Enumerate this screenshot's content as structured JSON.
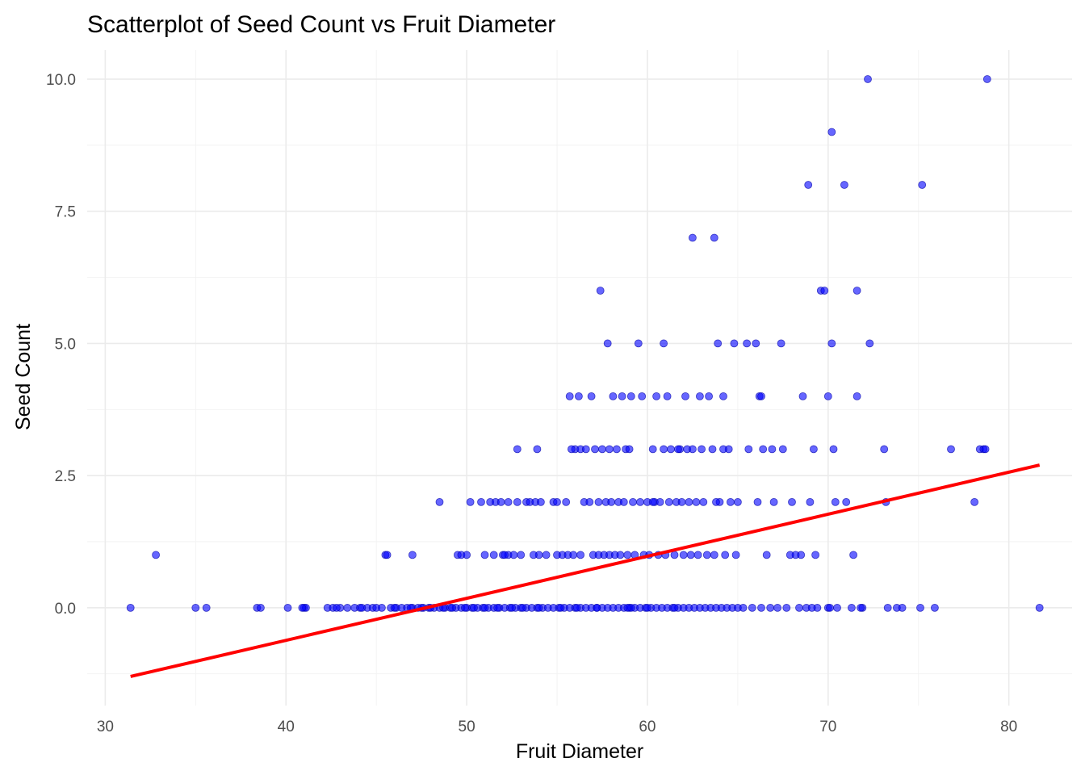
{
  "chart_data": {
    "type": "scatter",
    "title": "Scatterplot of Seed Count vs Fruit Diameter",
    "xlabel": "Fruit Diameter",
    "ylabel": "Seed Count",
    "xlim": [
      29,
      83.5
    ],
    "ylim": [
      -1.85,
      10.55
    ],
    "x_ticks": [
      30,
      40,
      50,
      60,
      70,
      80
    ],
    "x_tick_labels": [
      "30",
      "40",
      "50",
      "60",
      "70",
      "80"
    ],
    "y_ticks": [
      0,
      2.5,
      5,
      7.5,
      10
    ],
    "y_tick_labels": [
      "0.0",
      "2.5",
      "5.0",
      "7.5",
      "10.0"
    ],
    "grid": true,
    "legend": "none",
    "point_color": "#0000ff",
    "line_color": "#ff0000",
    "trend_line": {
      "x": [
        31.4,
        81.7
      ],
      "y": [
        -1.3,
        2.7
      ]
    },
    "points": [
      [
        31.4,
        0
      ],
      [
        32.8,
        1
      ],
      [
        35.0,
        0
      ],
      [
        35.6,
        0
      ],
      [
        38.4,
        0
      ],
      [
        38.6,
        0
      ],
      [
        40.1,
        0
      ],
      [
        41.0,
        0
      ],
      [
        41.1,
        0
      ],
      [
        42.3,
        0
      ],
      [
        42.6,
        0
      ],
      [
        43.0,
        0
      ],
      [
        43.4,
        0
      ],
      [
        43.8,
        0
      ],
      [
        44.1,
        0
      ],
      [
        44.5,
        0
      ],
      [
        44.8,
        0
      ],
      [
        45.0,
        0
      ],
      [
        45.3,
        0
      ],
      [
        45.5,
        1
      ],
      [
        45.6,
        1
      ],
      [
        45.8,
        0
      ],
      [
        46.1,
        0
      ],
      [
        46.4,
        0
      ],
      [
        46.7,
        0
      ],
      [
        47.0,
        1
      ],
      [
        47.0,
        0
      ],
      [
        47.3,
        0
      ],
      [
        47.6,
        0
      ],
      [
        47.9,
        0
      ],
      [
        48.2,
        0
      ],
      [
        48.5,
        2
      ],
      [
        48.5,
        0
      ],
      [
        48.8,
        0
      ],
      [
        49.1,
        0
      ],
      [
        49.4,
        0
      ],
      [
        49.7,
        0
      ],
      [
        49.5,
        1
      ],
      [
        49.7,
        1
      ],
      [
        50.0,
        1
      ],
      [
        50.0,
        0
      ],
      [
        50.2,
        2
      ],
      [
        50.3,
        0
      ],
      [
        50.6,
        0
      ],
      [
        50.9,
        0
      ],
      [
        51.2,
        0
      ],
      [
        51.0,
        1
      ],
      [
        51.5,
        1
      ],
      [
        51.5,
        0
      ],
      [
        51.8,
        0
      ],
      [
        51.3,
        2
      ],
      [
        51.6,
        2
      ],
      [
        51.9,
        2
      ],
      [
        52.0,
        1
      ],
      [
        52.1,
        0
      ],
      [
        52.3,
        2
      ],
      [
        52.4,
        0
      ],
      [
        52.3,
        1
      ],
      [
        52.6,
        1
      ],
      [
        52.7,
        0
      ],
      [
        52.8,
        3
      ],
      [
        52.8,
        2
      ],
      [
        53.0,
        0
      ],
      [
        53.0,
        1
      ],
      [
        53.3,
        0
      ],
      [
        53.3,
        2
      ],
      [
        53.6,
        0
      ],
      [
        53.5,
        2
      ],
      [
        53.8,
        2
      ],
      [
        53.9,
        0
      ],
      [
        53.9,
        3
      ],
      [
        54.1,
        2
      ],
      [
        54.2,
        0
      ],
      [
        54.0,
        1
      ],
      [
        54.4,
        1
      ],
      [
        54.5,
        0
      ],
      [
        54.8,
        0
      ],
      [
        54.8,
        2
      ],
      [
        55.0,
        1
      ],
      [
        55.1,
        0
      ],
      [
        55.0,
        2
      ],
      [
        55.3,
        1
      ],
      [
        55.4,
        0
      ],
      [
        55.5,
        2
      ],
      [
        55.6,
        1
      ],
      [
        55.7,
        0
      ],
      [
        55.7,
        4
      ],
      [
        55.9,
        1
      ],
      [
        56.0,
        0
      ],
      [
        56.0,
        3
      ],
      [
        56.3,
        0
      ],
      [
        56.3,
        3
      ],
      [
        56.3,
        1
      ],
      [
        56.5,
        2
      ],
      [
        56.6,
        0
      ],
      [
        56.6,
        3
      ],
      [
        56.8,
        2
      ],
      [
        56.9,
        0
      ],
      [
        56.9,
        4
      ],
      [
        57.0,
        1
      ],
      [
        57.1,
        3
      ],
      [
        57.2,
        0
      ],
      [
        57.3,
        2
      ],
      [
        57.3,
        1
      ],
      [
        57.4,
        6
      ],
      [
        57.5,
        0
      ],
      [
        57.5,
        3
      ],
      [
        57.6,
        1
      ],
      [
        57.7,
        2
      ],
      [
        57.8,
        0
      ],
      [
        57.8,
        5
      ],
      [
        57.9,
        1
      ],
      [
        57.9,
        3
      ],
      [
        58.0,
        2
      ],
      [
        58.1,
        0
      ],
      [
        58.1,
        4
      ],
      [
        58.2,
        1
      ],
      [
        58.4,
        0
      ],
      [
        58.4,
        2
      ],
      [
        58.5,
        1
      ],
      [
        58.6,
        4
      ],
      [
        58.7,
        0
      ],
      [
        58.7,
        2
      ],
      [
        58.8,
        3
      ],
      [
        58.9,
        1
      ],
      [
        59.0,
        0
      ],
      [
        59.0,
        3
      ],
      [
        59.1,
        4
      ],
      [
        59.2,
        2
      ],
      [
        59.3,
        0
      ],
      [
        59.3,
        1
      ],
      [
        59.5,
        5
      ],
      [
        59.6,
        0
      ],
      [
        59.6,
        2
      ],
      [
        59.7,
        4
      ],
      [
        59.8,
        1
      ],
      [
        59.9,
        0
      ],
      [
        60.0,
        2
      ],
      [
        60.1,
        1
      ],
      [
        60.2,
        0
      ],
      [
        60.3,
        3
      ],
      [
        60.4,
        2
      ],
      [
        60.5,
        0
      ],
      [
        60.5,
        4
      ],
      [
        60.6,
        1
      ],
      [
        60.7,
        2
      ],
      [
        60.8,
        0
      ],
      [
        60.9,
        5
      ],
      [
        60.9,
        3
      ],
      [
        61.0,
        1
      ],
      [
        61.1,
        0
      ],
      [
        61.1,
        4
      ],
      [
        61.2,
        2
      ],
      [
        61.3,
        3
      ],
      [
        61.4,
        0
      ],
      [
        61.5,
        1
      ],
      [
        61.6,
        2
      ],
      [
        61.7,
        0
      ],
      [
        61.8,
        3
      ],
      [
        61.9,
        2
      ],
      [
        62.0,
        0
      ],
      [
        62.0,
        1
      ],
      [
        62.1,
        4
      ],
      [
        62.2,
        3
      ],
      [
        62.3,
        0
      ],
      [
        62.3,
        2
      ],
      [
        62.4,
        1
      ],
      [
        62.5,
        7
      ],
      [
        62.5,
        3
      ],
      [
        62.6,
        0
      ],
      [
        62.7,
        2
      ],
      [
        62.8,
        1
      ],
      [
        62.9,
        0
      ],
      [
        63.0,
        3
      ],
      [
        63.1,
        2
      ],
      [
        63.2,
        0
      ],
      [
        63.3,
        1
      ],
      [
        63.4,
        4
      ],
      [
        63.5,
        0
      ],
      [
        63.6,
        3
      ],
      [
        63.7,
        7
      ],
      [
        63.7,
        1
      ],
      [
        63.8,
        0
      ],
      [
        63.9,
        5
      ],
      [
        64.0,
        2
      ],
      [
        64.1,
        0
      ],
      [
        64.2,
        4
      ],
      [
        64.3,
        1
      ],
      [
        64.4,
        0
      ],
      [
        64.5,
        3
      ],
      [
        64.6,
        2
      ],
      [
        64.7,
        0
      ],
      [
        64.8,
        5
      ],
      [
        64.9,
        1
      ],
      [
        65.0,
        0
      ],
      [
        65.0,
        2
      ],
      [
        65.3,
        0
      ],
      [
        65.5,
        5
      ],
      [
        65.6,
        3
      ],
      [
        65.8,
        0
      ],
      [
        66.0,
        5
      ],
      [
        66.1,
        2
      ],
      [
        66.2,
        4
      ],
      [
        66.3,
        0
      ],
      [
        66.4,
        3
      ],
      [
        66.6,
        1
      ],
      [
        66.8,
        0
      ],
      [
        67.0,
        2
      ],
      [
        67.2,
        0
      ],
      [
        67.4,
        5
      ],
      [
        67.5,
        3
      ],
      [
        67.7,
        0
      ],
      [
        68.0,
        2
      ],
      [
        68.2,
        1
      ],
      [
        68.4,
        0
      ],
      [
        68.6,
        4
      ],
      [
        68.8,
        0
      ],
      [
        69.0,
        2
      ],
      [
        69.2,
        3
      ],
      [
        69.4,
        0
      ],
      [
        69.6,
        6
      ],
      [
        69.8,
        6
      ],
      [
        70.0,
        0
      ],
      [
        70.0,
        4
      ],
      [
        70.2,
        9
      ],
      [
        70.2,
        5
      ],
      [
        70.3,
        3
      ],
      [
        70.4,
        2
      ],
      [
        70.5,
        0
      ],
      [
        70.9,
        8
      ],
      [
        71.0,
        2
      ],
      [
        71.3,
        0
      ],
      [
        71.4,
        1
      ],
      [
        71.6,
        6
      ],
      [
        71.6,
        4
      ],
      [
        71.9,
        0
      ],
      [
        72.2,
        10
      ],
      [
        72.3,
        5
      ],
      [
        73.1,
        3
      ],
      [
        73.2,
        2
      ],
      [
        73.3,
        0
      ],
      [
        73.8,
        0
      ],
      [
        74.1,
        0
      ],
      [
        75.1,
        0
      ],
      [
        75.2,
        8
      ],
      [
        75.9,
        0
      ],
      [
        76.8,
        3
      ],
      [
        78.1,
        2
      ],
      [
        78.4,
        3
      ],
      [
        78.6,
        3
      ],
      [
        78.7,
        3
      ],
      [
        78.8,
        10
      ],
      [
        81.7,
        0
      ],
      [
        68.9,
        8
      ],
      [
        68.5,
        1
      ],
      [
        69.3,
        1
      ],
      [
        66.9,
        3
      ],
      [
        67.9,
        1
      ],
      [
        64.2,
        3
      ],
      [
        62.9,
        4
      ],
      [
        61.7,
        3
      ],
      [
        60.3,
        2
      ],
      [
        59.1,
        0
      ],
      [
        58.3,
        3
      ],
      [
        56.2,
        4
      ],
      [
        55.8,
        3
      ],
      [
        53.7,
        1
      ],
      [
        52.1,
        1
      ],
      [
        50.8,
        2
      ],
      [
        49.9,
        0
      ],
      [
        48.7,
        0
      ],
      [
        47.5,
        0
      ],
      [
        46.9,
        0
      ],
      [
        44.2,
        0
      ],
      [
        42.8,
        0
      ],
      [
        40.9,
        0
      ],
      [
        66.3,
        4
      ],
      [
        69.1,
        0
      ],
      [
        70.1,
        0
      ],
      [
        71.8,
        0
      ],
      [
        63.8,
        2
      ],
      [
        61.5,
        0
      ],
      [
        60.0,
        0
      ],
      [
        58.9,
        0
      ],
      [
        57.2,
        0
      ],
      [
        56.1,
        0
      ],
      [
        55.2,
        0
      ],
      [
        54.0,
        0
      ],
      [
        53.1,
        0
      ],
      [
        52.5,
        0
      ],
      [
        51.7,
        0
      ],
      [
        51.0,
        0
      ],
      [
        50.4,
        0
      ],
      [
        49.2,
        0
      ],
      [
        48.0,
        0
      ],
      [
        46.0,
        0
      ]
    ]
  }
}
